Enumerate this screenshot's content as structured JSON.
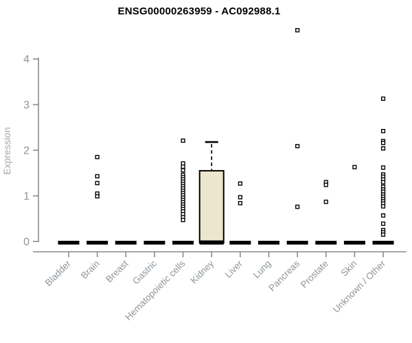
{
  "chart_data": {
    "type": "boxplot",
    "title": "ENSG00000263959 - AC092988.1",
    "ylabel": "Expression",
    "xlabel": "",
    "ylim": [
      0,
      4
    ],
    "yticks": [
      0,
      1,
      2,
      3,
      4
    ],
    "grid": false,
    "legend": false,
    "categories": [
      "Bladder",
      "Brain",
      "Breast",
      "Gastric",
      "Hematopoietic cells",
      "Kidney",
      "Liver",
      "Lung",
      "Pancreas",
      "Prostate",
      "Skin",
      "Unknown / Other"
    ],
    "boxes": [
      {
        "category": "Bladder",
        "median": 0,
        "q1": 0,
        "q3": 0,
        "whisker_low": 0,
        "whisker_high": 0,
        "outliers": []
      },
      {
        "category": "Brain",
        "median": 0,
        "q1": 0,
        "q3": 0,
        "whisker_low": 0,
        "whisker_high": 0,
        "outliers": [
          1.85,
          1.43,
          1.28,
          1.05,
          0.99
        ]
      },
      {
        "category": "Breast",
        "median": 0,
        "q1": 0,
        "q3": 0,
        "whisker_low": 0,
        "whisker_high": 0,
        "outliers": []
      },
      {
        "category": "Gastric",
        "median": 0,
        "q1": 0,
        "q3": 0,
        "whisker_low": 0,
        "whisker_high": 0,
        "outliers": []
      },
      {
        "category": "Hematopoietic cells",
        "median": 0,
        "q1": 0,
        "q3": 0,
        "whisker_low": 0,
        "whisker_high": 0,
        "outliers": [
          2.21,
          1.71,
          1.64,
          1.56,
          1.46,
          1.41,
          1.36,
          1.31,
          1.26,
          1.21,
          1.16,
          1.11,
          1.06,
          1.01,
          0.96,
          0.91,
          0.86,
          0.81,
          0.76,
          0.71,
          0.66,
          0.6,
          0.53,
          0.47
        ]
      },
      {
        "category": "Kidney",
        "median": 0,
        "q1": 0,
        "q3": 1.55,
        "whisker_low": 0,
        "whisker_high": 2.18,
        "outliers": []
      },
      {
        "category": "Liver",
        "median": 0,
        "q1": 0,
        "q3": 0,
        "whisker_low": 0,
        "whisker_high": 0,
        "outliers": [
          1.27,
          0.97,
          0.84
        ]
      },
      {
        "category": "Lung",
        "median": 0,
        "q1": 0,
        "q3": 0,
        "whisker_low": 0,
        "whisker_high": 0,
        "outliers": []
      },
      {
        "category": "Pancreas",
        "median": 0,
        "q1": 0,
        "q3": 0,
        "whisker_low": 0,
        "whisker_high": 0,
        "outliers": [
          4.63,
          2.09,
          0.76
        ]
      },
      {
        "category": "Prostate",
        "median": 0,
        "q1": 0,
        "q3": 0,
        "whisker_low": 0,
        "whisker_high": 0,
        "outliers": [
          1.3,
          1.24,
          0.87
        ]
      },
      {
        "category": "Skin",
        "median": 0,
        "q1": 0,
        "q3": 0,
        "whisker_low": 0,
        "whisker_high": 0,
        "outliers": [
          1.63
        ]
      },
      {
        "category": "Unknown / Other",
        "median": 0,
        "q1": 0,
        "q3": 0,
        "whisker_low": 0,
        "whisker_high": 0,
        "outliers": [
          3.13,
          2.42,
          2.2,
          2.16,
          2.04,
          1.62,
          1.47,
          1.42,
          1.36,
          1.3,
          1.2,
          1.14,
          1.09,
          1.03,
          0.98,
          0.93,
          0.88,
          0.83,
          0.77,
          0.57,
          0.39,
          0.25,
          0.2,
          0.15
        ]
      }
    ],
    "colors": {
      "box_fill": "#ECE6CE",
      "box_border": "#000000",
      "median": "#000000",
      "axis": "#8a8a8a",
      "axis_text": "#8e959b",
      "ylabel_text": "#a8a8a8",
      "title_text": "#000000",
      "point_fill": "#ffffff",
      "point_border": "#000000",
      "background": "#ffffff"
    }
  }
}
